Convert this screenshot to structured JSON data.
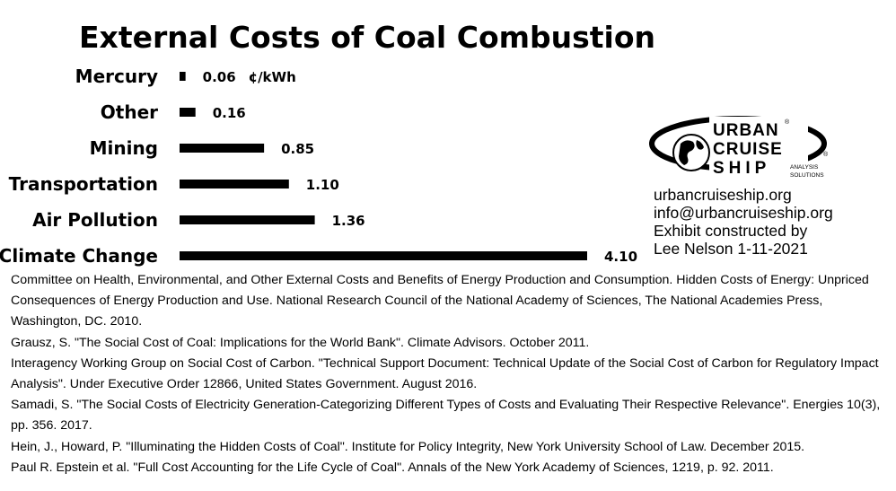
{
  "chart_data": {
    "type": "bar",
    "orientation": "horizontal",
    "title": "External Costs of Coal Combustion",
    "unit": "¢/kWh",
    "categories": [
      "Mercury",
      "Other",
      "Mining",
      "Transportation",
      "Air Pollution",
      "Climate Change"
    ],
    "values": [
      0.06,
      0.16,
      0.85,
      1.1,
      1.36,
      4.1
    ],
    "value_labels": [
      "0.06",
      "0.16",
      "0.85",
      "1.10",
      "1.36",
      "4.10"
    ],
    "bar_color": "#000000",
    "xlim": [
      0,
      4.1
    ],
    "grid": false,
    "legend": "none"
  },
  "branding": {
    "logo_line1": "URBAN",
    "logo_line2": "CRUISE",
    "logo_line3": "SHIP",
    "logo_tag1": "ANALYSIS",
    "logo_tag2": "SOLUTIONS",
    "logo_mark": "®"
  },
  "contact": {
    "website": "urbancruiseship.org",
    "email": "info@urbancruiseship.org",
    "credit_line1": "Exhibit constructed by",
    "credit_line2": "Lee Nelson 1-11-2021"
  },
  "references": [
    "Committee on Health, Environmental, and Other External Costs and Benefits of Energy Production and Consumption. Hidden Costs of Energy: Unpriced Consequences of Energy Production and Use. National Research Council of the National Academy of Sciences, The National Academies Press, Washington, DC. 2010.",
    "Grausz, S. \"The Social Cost of Coal: Implications for the World Bank\". Climate Advisors. October 2011.",
    "Interagency Working Group on Social Cost of Carbon. \"Technical Support Document: Technical Update of the Social Cost of Carbon for Regulatory Impact Analysis\". Under Executive Order 12866, United States Government. August 2016.",
    "Samadi, S. \"The Social Costs of Electricity Generation-Categorizing Different Types of Costs and Evaluating Their Respective Relevance\". Energies 10(3), pp. 356. 2017.",
    "Hein, J., Howard, P. \"Illuminating the Hidden Costs of Coal\". Institute for Policy Integrity, New York University School of Law. December 2015.",
    "Paul R. Epstein et al. \"Full Cost Accounting for the Life Cycle of Coal\". Annals of the New York Academy of Sciences, 1219, p. 92. 2011."
  ]
}
